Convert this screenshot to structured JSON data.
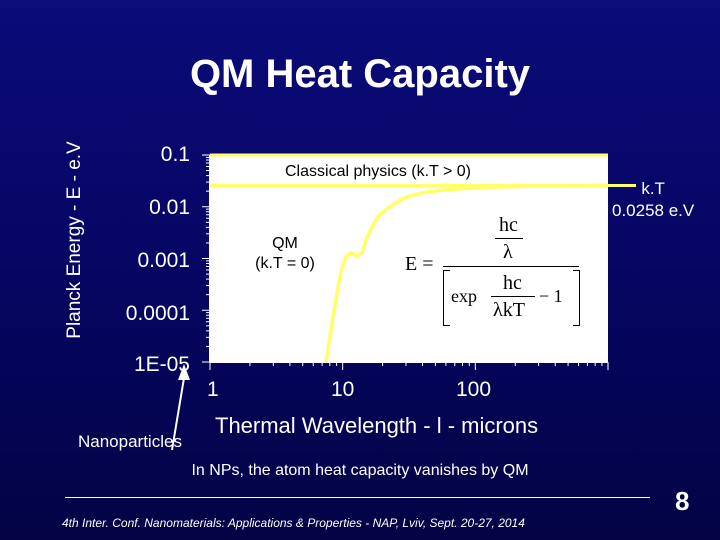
{
  "title": "QM Heat Capacity",
  "caption": "In NPs, the atom heat capacity vanishes by QM",
  "footer": "4th Inter. Conf. Nanomaterials: Applications & Properties - NAP, Lviv, Sept. 20-27, 2014",
  "page_number": "8",
  "colors": {
    "background": "#06066a",
    "plot_area": "#ffffff",
    "curve": "#ffff66",
    "text": "#ffffff"
  },
  "annotations": {
    "classical": "Classical physics  (k.T > 0)",
    "qm_line1": "QM",
    "qm_line2": "(k.T = 0)",
    "kt_line1": "k.T",
    "kt_line2": "0.0258 e.V",
    "nanoparticles": "Nanoparticles"
  },
  "formula": {
    "lhs": "E =",
    "num_num": "hc",
    "num_den": "λ",
    "exp": "exp",
    "inner_num": "hc",
    "inner_den": "λkT",
    "minus_one": "− 1"
  },
  "chart_data": {
    "type": "line",
    "xlabel": "Thermal Wavelength - l - microns",
    "ylabel": "Planck Energy - E - e.V",
    "x_scale": "log",
    "y_scale": "log",
    "xlim": [
      1,
      1000
    ],
    "ylim": [
      1e-05,
      0.1
    ],
    "x_tick_labels": [
      "1",
      "10",
      "100"
    ],
    "y_tick_labels": [
      "0.1",
      "0.01",
      "0.001",
      "0.0001",
      "1E-05"
    ],
    "grid": false,
    "series": [
      {
        "x": [
          7.5,
          8.6,
          9.6,
          10.6,
          11.6,
          12.8,
          14.0,
          15.2,
          16.4,
          18.3,
          20.2,
          24.1,
          27.3,
          31.3,
          39.5,
          55.3,
          79.4,
          130.3,
          289.8,
          1000
        ],
        "y": [
          1e-05,
          0.0001,
          0.0005,
          0.0011,
          0.0013,
          0.0011,
          0.0013,
          0.0025,
          0.0038,
          0.0063,
          0.0079,
          0.0112,
          0.0135,
          0.0159,
          0.0185,
          0.0209,
          0.0224,
          0.024,
          0.0251,
          0.0258
        ]
      }
    ],
    "reference_lines": [
      {
        "y": 0.0258
      },
      {
        "y": 0.1
      }
    ]
  }
}
